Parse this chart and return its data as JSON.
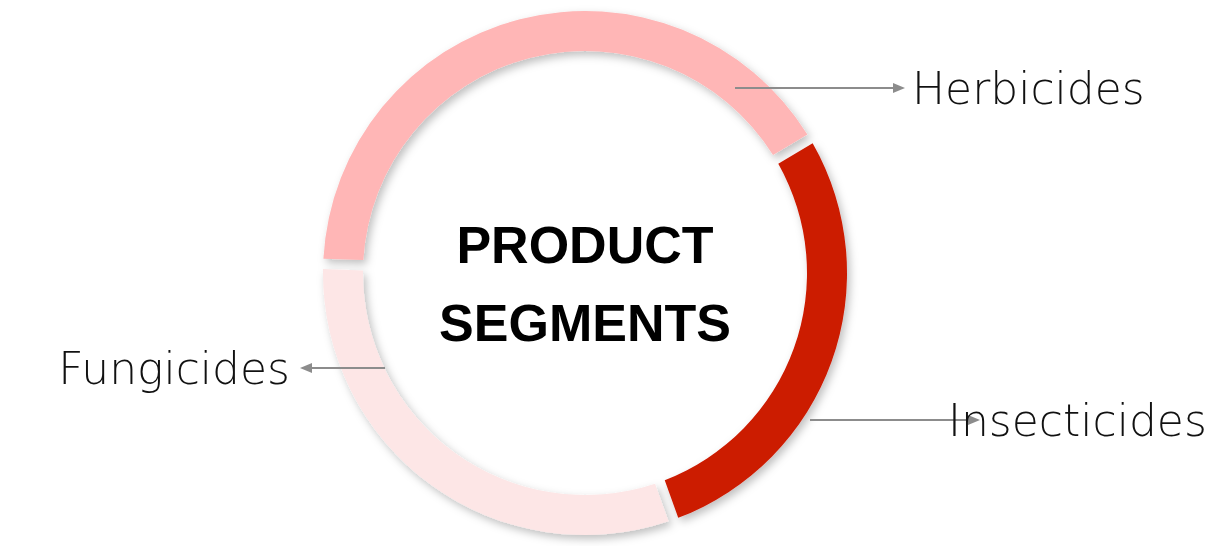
{
  "chart_data": {
    "type": "donut",
    "title": "PRODUCT SEGMENTS",
    "categories": [
      "Herbicides",
      "Insecticides",
      "Fungicides"
    ],
    "values": [
      41,
      28,
      31
    ],
    "colors": [
      "#ffb6b6",
      "#cc1a00",
      "#fde6e6"
    ]
  }
}
